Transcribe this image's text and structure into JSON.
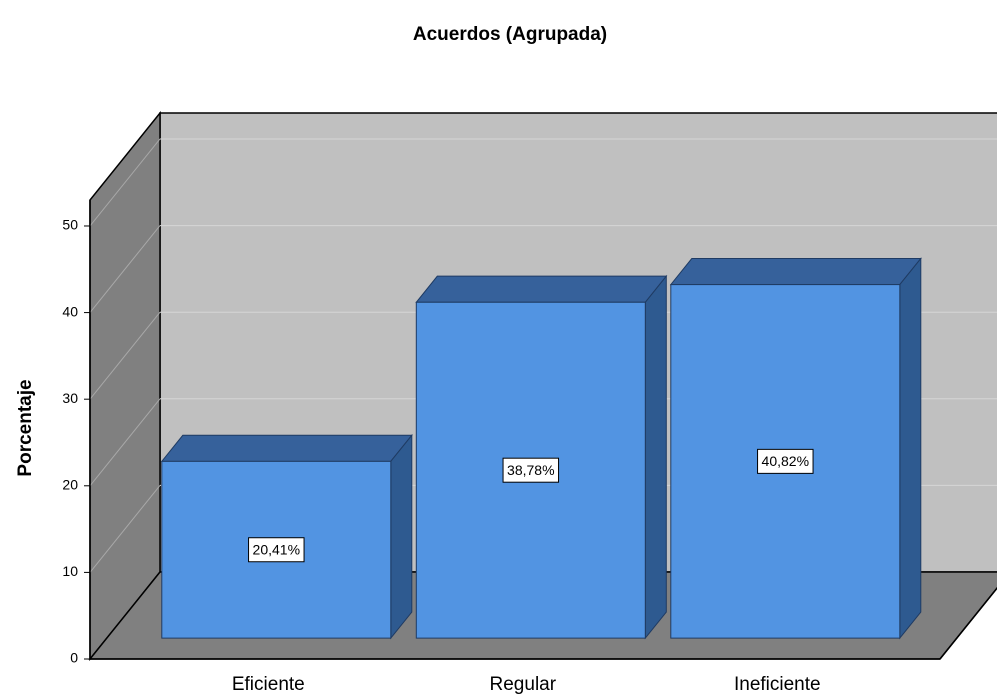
{
  "chart_data": {
    "type": "bar3d",
    "title": "Acuerdos (Agrupada)",
    "y_label": "Porcentaje",
    "categories": [
      "Eficiente",
      "Regular",
      "Ineficiente"
    ],
    "values": [
      20.41,
      38.78,
      40.82
    ],
    "value_labels": [
      "20,41%",
      "38,78%",
      "40,82%"
    ],
    "color": "#5294e2",
    "ylim": [
      0,
      53
    ],
    "yticks": [
      0,
      10,
      20,
      30,
      40,
      50
    ],
    "grid": true
  }
}
